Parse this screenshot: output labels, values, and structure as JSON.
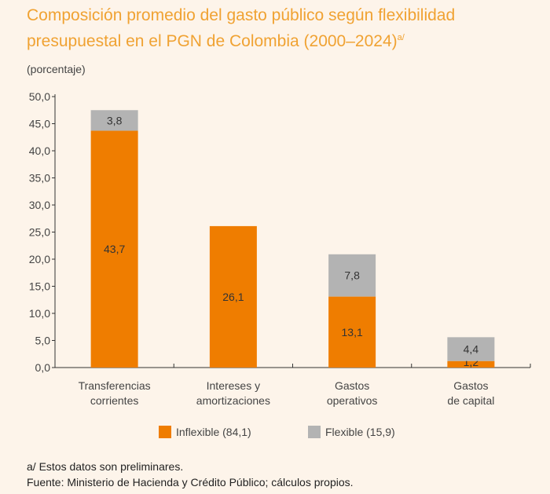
{
  "title": "Composición promedio del gasto público según flexibilidad presupuestal en el PGN de Colombia (2000–2024)",
  "title_sup": "a/",
  "unit": "(porcentaje)",
  "colors": {
    "inflexible": "#ef7d00",
    "flexible": "#b3b3b3",
    "title": "#f0a232",
    "background": "#fdf4ea"
  },
  "chart_data": {
    "type": "bar",
    "stacked": true,
    "categories": [
      [
        "Transferencias",
        "corrientes"
      ],
      [
        "Intereses y",
        "amortizaciones"
      ],
      [
        "Gastos",
        "operativos"
      ],
      [
        "Gastos",
        "de capital"
      ]
    ],
    "series": [
      {
        "name": "Inflexible (84,1)",
        "values": [
          43.7,
          26.1,
          13.1,
          1.2
        ],
        "labels": [
          "43,7",
          "26,1",
          "13,1",
          "1,2"
        ]
      },
      {
        "name": "Flexible (15,9)",
        "values": [
          3.8,
          0,
          7.8,
          4.4
        ],
        "labels": [
          "3,8",
          "",
          "7,8",
          "4,4"
        ]
      }
    ],
    "ylim": [
      0,
      50
    ],
    "yticks": [
      "0,0",
      "5,0",
      "10,0",
      "15,0",
      "20,0",
      "25,0",
      "30,0",
      "35,0",
      "40,0",
      "45,0",
      "50,0"
    ],
    "grid": false,
    "legend": "bottom"
  },
  "notes": [
    "a/ Estos datos son preliminares.",
    "Fuente: Ministerio de Hacienda y Crédito Público; cálculos propios."
  ]
}
